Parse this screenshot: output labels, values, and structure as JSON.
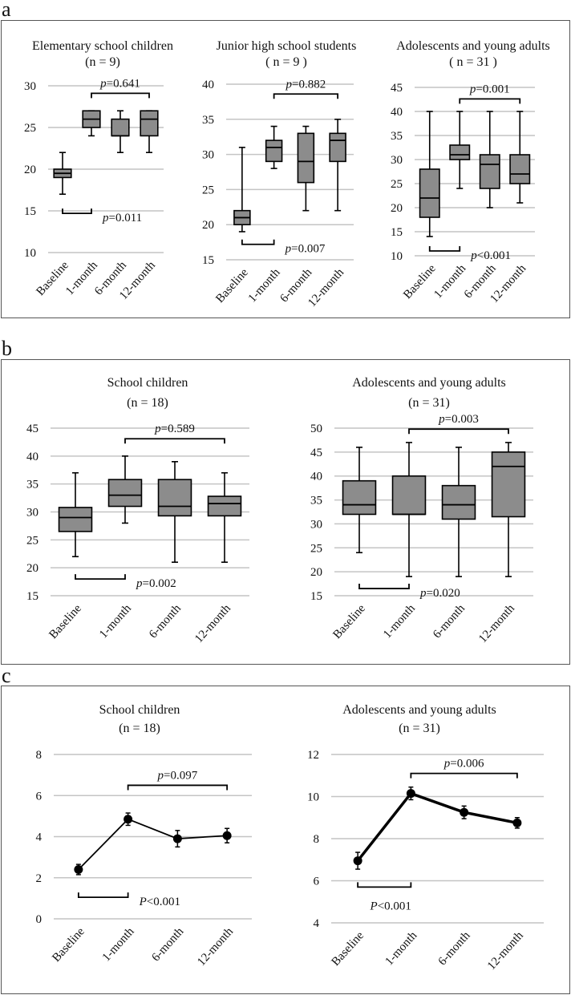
{
  "panels": [
    {
      "letter": "a"
    },
    {
      "letter": "b"
    },
    {
      "letter": "c"
    }
  ],
  "chart_data": [
    {
      "panel": "a",
      "type": "box",
      "title": "Elementary school children",
      "subtitle": "(n = 9)",
      "categories": [
        "Baseline",
        "1-month",
        "6-month",
        "12-month"
      ],
      "ylim": [
        10,
        30
      ],
      "yticks": [
        10,
        15,
        20,
        25,
        30
      ],
      "grid": true,
      "boxes": [
        {
          "min": 17,
          "q1": 19,
          "median": 19.5,
          "q3": 20,
          "max": 22
        },
        {
          "min": 24,
          "q1": 25,
          "median": 26,
          "q3": 27,
          "max": 27
        },
        {
          "min": 22,
          "q1": 24,
          "median": 24,
          "q3": 26,
          "max": 27
        },
        {
          "min": 22,
          "q1": 24,
          "median": 26,
          "q3": 27,
          "max": 27
        }
      ],
      "annotations": [
        {
          "from": 1,
          "to": 3,
          "y": 29.1,
          "p_symbol": "p",
          "p_text": "=0.641"
        },
        {
          "from": 0,
          "to": 1,
          "y": 14.7,
          "p_symbol": "p",
          "p_text": "=0.011"
        }
      ]
    },
    {
      "panel": "a",
      "type": "box",
      "title": "Junior high school students",
      "subtitle": "( n = 9 )",
      "categories": [
        "Baseline",
        "1-month",
        "6-month",
        "12-month"
      ],
      "ylim": [
        15,
        40
      ],
      "yticks": [
        15,
        20,
        25,
        30,
        35,
        40
      ],
      "grid": true,
      "boxes": [
        {
          "min": 19,
          "q1": 20,
          "median": 21,
          "q3": 22,
          "max": 31
        },
        {
          "min": 28,
          "q1": 29,
          "median": 31,
          "q3": 32,
          "max": 34
        },
        {
          "min": 22,
          "q1": 26,
          "median": 29,
          "q3": 33,
          "max": 34
        },
        {
          "min": 22,
          "q1": 29,
          "median": 32,
          "q3": 33,
          "max": 35
        }
      ],
      "annotations": [
        {
          "from": 1,
          "to": 3,
          "y": 38.6,
          "p_symbol": "p",
          "p_text": "=0.882"
        },
        {
          "from": 0,
          "to": 1,
          "y": 17.2,
          "p_symbol": "p",
          "p_text": "=0.007"
        }
      ]
    },
    {
      "panel": "a",
      "type": "box",
      "title": "Adolescents and young adults",
      "subtitle": "( n = 31 )",
      "categories": [
        "Baseline",
        "1-month",
        "6-month",
        "12-month"
      ],
      "ylim": [
        10,
        45
      ],
      "yticks": [
        10,
        15,
        20,
        25,
        30,
        35,
        40,
        45
      ],
      "grid": true,
      "boxes": [
        {
          "min": 14,
          "q1": 18,
          "median": 22,
          "q3": 28,
          "max": 40
        },
        {
          "min": 24,
          "q1": 30,
          "median": 31,
          "q3": 33,
          "max": 40
        },
        {
          "min": 20,
          "q1": 24,
          "median": 29,
          "q3": 31,
          "max": 40
        },
        {
          "min": 21,
          "q1": 25,
          "median": 27,
          "q3": 31,
          "max": 40
        }
      ],
      "annotations": [
        {
          "from": 1,
          "to": 3,
          "y": 42.6,
          "p_symbol": "p",
          "p_text": "=0.001"
        },
        {
          "from": 0,
          "to": 1,
          "y": 11,
          "p_symbol": "p",
          "p_text": "<0.001"
        }
      ]
    },
    {
      "panel": "b",
      "type": "box",
      "title": "School children",
      "subtitle": "(n = 18)",
      "categories": [
        "Baseline",
        "1-month",
        "6-month",
        "12-month"
      ],
      "ylim": [
        15,
        45
      ],
      "yticks": [
        15,
        20,
        25,
        30,
        35,
        40,
        45
      ],
      "grid": true,
      "boxes": [
        {
          "min": 22,
          "q1": 26.5,
          "median": 29,
          "q3": 30.8,
          "max": 37
        },
        {
          "min": 28,
          "q1": 31,
          "median": 33,
          "q3": 35.8,
          "max": 40
        },
        {
          "min": 21,
          "q1": 29.3,
          "median": 31,
          "q3": 35.8,
          "max": 39
        },
        {
          "min": 21,
          "q1": 29.3,
          "median": 31.5,
          "q3": 32.8,
          "max": 37
        }
      ],
      "annotations": [
        {
          "from": 1,
          "to": 3,
          "y": 43.1,
          "p_symbol": "p",
          "p_text": "=0.589"
        },
        {
          "from": 0,
          "to": 1,
          "y": 18,
          "p_symbol": "p",
          "p_text": "=0.002"
        }
      ]
    },
    {
      "panel": "b",
      "type": "box",
      "title": "Adolescents and young adults",
      "subtitle": "(n = 31)",
      "categories": [
        "Baseline",
        "1-month",
        "6-month",
        "12-month"
      ],
      "ylim": [
        15,
        50
      ],
      "yticks": [
        15,
        20,
        25,
        30,
        35,
        40,
        45,
        50
      ],
      "grid": true,
      "boxes": [
        {
          "min": 24,
          "q1": 32,
          "median": 34,
          "q3": 39,
          "max": 46
        },
        {
          "min": 19,
          "q1": 32,
          "median": 32,
          "q3": 40,
          "max": 47
        },
        {
          "min": 19,
          "q1": 31,
          "median": 34,
          "q3": 38,
          "max": 46
        },
        {
          "min": 19,
          "q1": 31.5,
          "median": 42,
          "q3": 45,
          "max": 47
        }
      ],
      "annotations": [
        {
          "from": 1,
          "to": 3,
          "y": 49.8,
          "p_symbol": "p",
          "p_text": "=0.003"
        },
        {
          "from": 0,
          "to": 1,
          "y": 16.5,
          "p_symbol": "p",
          "p_text": "=0.020"
        }
      ]
    },
    {
      "panel": "c",
      "type": "line",
      "title": "School children",
      "subtitle": "(n = 18)",
      "categories": [
        "Baseline",
        "1-month",
        "6-month",
        "12-month"
      ],
      "ylim": [
        0,
        8
      ],
      "yticks": [
        0,
        2,
        4,
        6,
        8
      ],
      "grid": true,
      "values": [
        2.4,
        4.85,
        3.9,
        4.05
      ],
      "errors": [
        0.25,
        0.3,
        0.4,
        0.35
      ],
      "annotations": [
        {
          "from": 1,
          "to": 3,
          "y": 6.5,
          "p_symbol": "p",
          "p_text": "=0.097"
        },
        {
          "from": 0,
          "to": 1,
          "y": 1.05,
          "p_symbol": "P",
          "p_text": "<0.001"
        }
      ]
    },
    {
      "panel": "c",
      "type": "line",
      "title": "Adolescents and young adults",
      "subtitle": "(n = 31)",
      "categories": [
        "Baseline",
        "1-month",
        "6-month",
        "12-month"
      ],
      "ylim": [
        4,
        12
      ],
      "yticks": [
        4,
        6,
        8,
        10,
        12
      ],
      "grid": true,
      "values": [
        6.95,
        10.15,
        9.25,
        8.75
      ],
      "errors": [
        0.4,
        0.3,
        0.3,
        0.25
      ],
      "annotations": [
        {
          "from": 1,
          "to": 3,
          "y": 11.1,
          "p_symbol": "p",
          "p_text": "=0.006"
        },
        {
          "from": 0,
          "to": 1,
          "y": 5.7,
          "p_symbol": "P",
          "p_text": "<0.001"
        }
      ]
    }
  ]
}
